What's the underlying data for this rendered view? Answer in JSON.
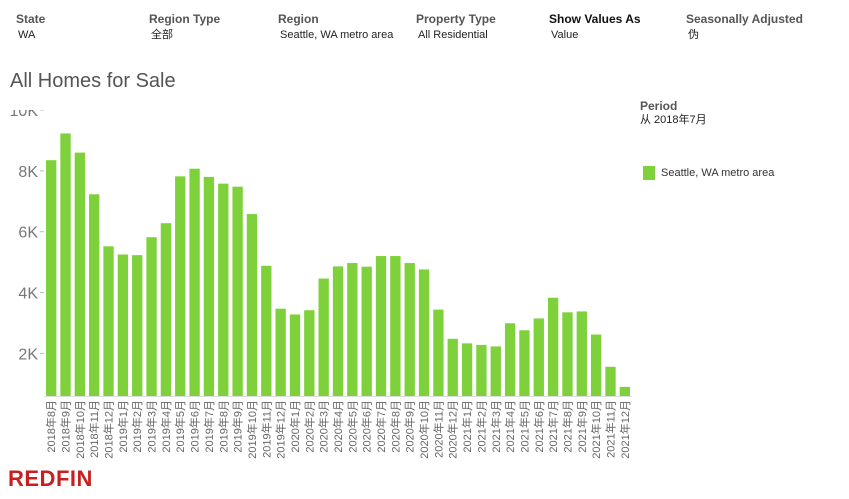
{
  "filters": {
    "state": {
      "label": "State",
      "value": "WA"
    },
    "region_type": {
      "label": "Region Type",
      "value": "全部"
    },
    "region": {
      "label": "Region",
      "value": "Seattle, WA metro area"
    },
    "property_type": {
      "label": "Property Type",
      "value": "All Residential"
    },
    "show_values_as": {
      "label": "Show Values As",
      "value": "Value"
    },
    "seasonally_adjusted": {
      "label": "Seasonally Adjusted",
      "value": "伪"
    }
  },
  "title": "All Homes for Sale",
  "period": {
    "label": "Period",
    "value": "从 2018年7月"
  },
  "legend": {
    "label": "Seattle, WA metro area"
  },
  "logo": "REDFIN",
  "colors": {
    "bar": "#7fd13b",
    "axis": "#888888",
    "logo": "#c82021"
  },
  "chart_data": {
    "type": "bar",
    "title": "All Homes for Sale",
    "xlabel": "",
    "ylabel": "",
    "ylim": [
      600,
      10000
    ],
    "yticks": [
      2000,
      4000,
      6000,
      8000,
      10000
    ],
    "ytick_labels": [
      "2K",
      "4K",
      "6K",
      "8K",
      "10K"
    ],
    "series": [
      {
        "name": "Seattle, WA metro area",
        "values": [
          8350,
          9230,
          8600,
          7230,
          5520,
          5250,
          5230,
          5820,
          6280,
          7820,
          8070,
          7800,
          7580,
          7480,
          6580,
          4880,
          3470,
          3280,
          3420,
          4460,
          4860,
          4970,
          4850,
          5200,
          5200,
          4970,
          4760,
          3440,
          2480,
          2330,
          2280,
          2230,
          2990,
          2760,
          3150,
          3830,
          3350,
          3380,
          2620,
          1560,
          900
        ]
      }
    ],
    "categories": [
      "2018年8月",
      "2018年9月",
      "2018年10月",
      "2018年11月",
      "2018年12月",
      "2019年1月",
      "2019年2月",
      "2019年3月",
      "2019年4月",
      "2019年5月",
      "2019年6月",
      "2019年7月",
      "2019年8月",
      "2019年9月",
      "2019年10月",
      "2019年11月",
      "2019年12月",
      "2020年1月",
      "2020年2月",
      "2020年3月",
      "2020年4月",
      "2020年5月",
      "2020年6月",
      "2020年7月",
      "2020年8月",
      "2020年9月",
      "2020年10月",
      "2020年11月",
      "2020年12月",
      "2021年1月",
      "2021年2月",
      "2021年3月",
      "2021年4月",
      "2021年5月",
      "2021年6月",
      "2021年7月",
      "2021年8月",
      "2021年9月",
      "2021年10月",
      "2021年11月",
      "2021年12月"
    ]
  }
}
